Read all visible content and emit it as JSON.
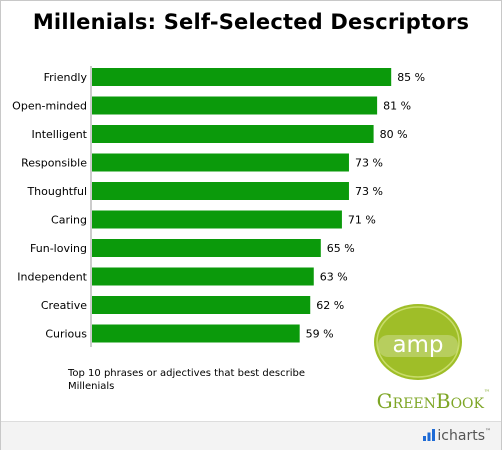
{
  "chart_data": {
    "type": "bar",
    "orientation": "horizontal",
    "title": "Millenials: Self-Selected Descriptors",
    "categories": [
      "Friendly",
      "Open-minded",
      "Intelligent",
      "Responsible",
      "Thoughtful",
      "Caring",
      "Fun-loving",
      "Independent",
      "Creative",
      "Curious"
    ],
    "values": [
      85,
      81,
      80,
      73,
      73,
      71,
      65,
      63,
      62,
      59
    ],
    "value_suffix": " %",
    "bar_color": "#0b9a0b",
    "xlim": [
      0,
      100
    ],
    "xlabel": "",
    "ylabel": "",
    "grid": false,
    "legend": "none"
  },
  "note": "Top 10 phrases or adjectives that best describe Millenials",
  "logo": {
    "badge_text": "amp",
    "badge_color": "#9fbe28",
    "greenbook_text": "GreenBook",
    "trademark": "™"
  },
  "footer": {
    "brand": "icharts",
    "brand_icon": "icharts-icon",
    "trademark": "™"
  }
}
